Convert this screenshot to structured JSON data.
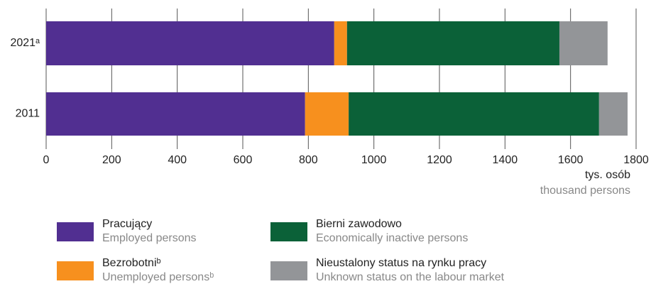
{
  "chart_data": {
    "type": "stacked_barh",
    "categories": [
      "2021ᵃ",
      "2011"
    ],
    "series": [
      {
        "name": "Pracujący",
        "name_en": "Employed persons",
        "color": "#512f91",
        "values": [
          879,
          790
        ]
      },
      {
        "name": "Bezrobotniᵇ",
        "name_en": "Unemployed personsᵇ",
        "color": "#f7901e",
        "values": [
          39,
          133
        ]
      },
      {
        "name": "Bierni zawodowo",
        "name_en": "Economically inactive persons",
        "color": "#0b6138",
        "values": [
          648,
          764
        ]
      },
      {
        "name": "Nieustalony status na rynku pracy",
        "name_en": "Unknown status on the labour market",
        "color": "#939598",
        "values": [
          147,
          87
        ]
      }
    ],
    "xlim": [
      0,
      1800
    ],
    "xticks": [
      0,
      200,
      400,
      600,
      800,
      1000,
      1200,
      1400,
      1600,
      1800
    ],
    "x_label": "tys. osób",
    "x_label_en": "thousand persons",
    "grid": true
  }
}
